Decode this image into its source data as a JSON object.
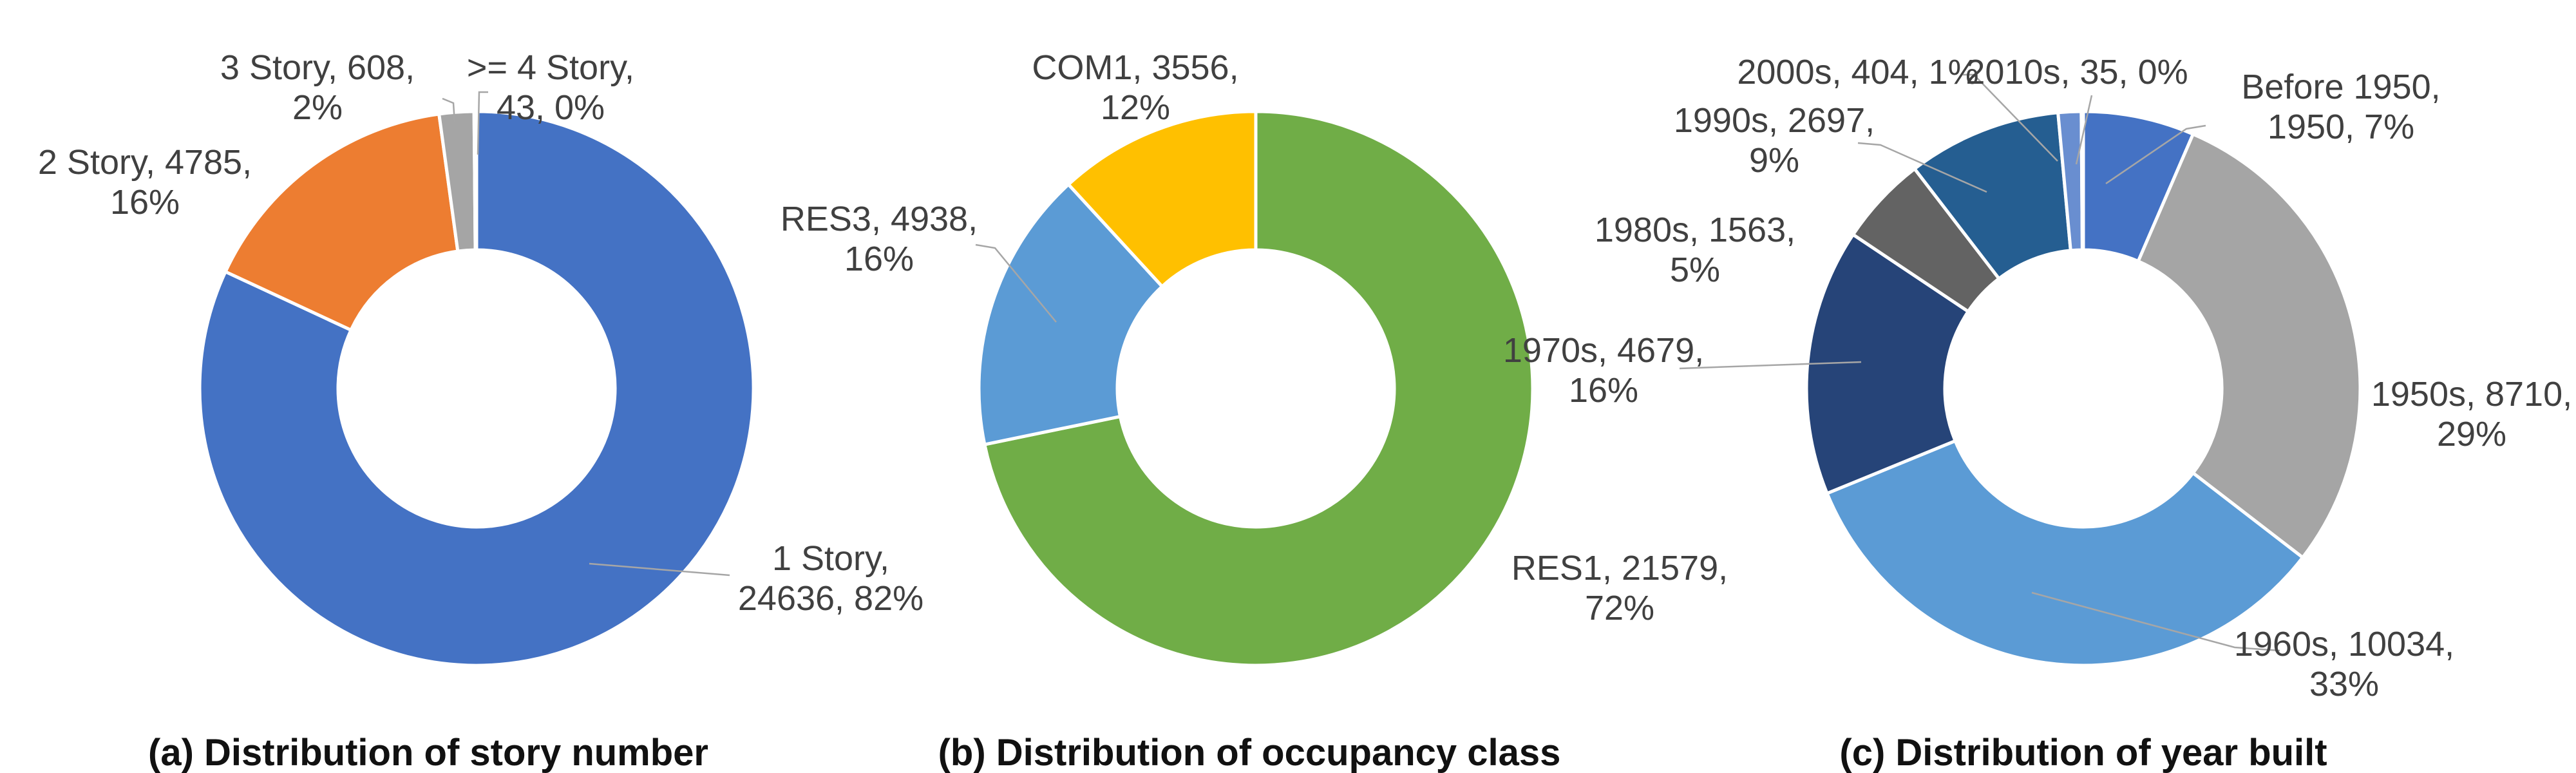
{
  "chart_data": [
    {
      "type": "pie",
      "donut": true,
      "title": "(a) Distribution of story number",
      "slices": [
        {
          "label": "1 Story, 24636, 82%",
          "name": "1 Story",
          "value": 24636,
          "percent": 82,
          "color": "#4472C4"
        },
        {
          "label": "2 Story, 4785, 16%",
          "name": "2 Story",
          "value": 4785,
          "percent": 16,
          "color": "#ED7D31"
        },
        {
          "label": "3 Story, 608, 2%",
          "name": "3 Story",
          "value": 608,
          "percent": 2,
          "color": "#A5A5A5"
        },
        {
          "label": ">= 4 Story, 43, 0%",
          "name": ">= 4 Story",
          "value": 43,
          "percent": 0,
          "color": "#5B9BD5"
        }
      ]
    },
    {
      "type": "pie",
      "donut": true,
      "title": "(b) Distribution of occupancy class",
      "slices": [
        {
          "label": "RES1, 21579, 72%",
          "name": "RES1",
          "value": 21579,
          "percent": 72,
          "color": "#70AD47"
        },
        {
          "label": "RES3, 4938, 16%",
          "name": "RES3",
          "value": 4938,
          "percent": 16,
          "color": "#5B9BD5"
        },
        {
          "label": "COM1, 3556, 12%",
          "name": "COM1",
          "value": 3556,
          "percent": 12,
          "color": "#FFC000"
        }
      ]
    },
    {
      "type": "pie",
      "donut": true,
      "title": "(c) Distribution of year built",
      "slices": [
        {
          "label": "Before 1950, 1950, 7%",
          "name": "Before 1950",
          "value": 1950,
          "percent": 7,
          "color": "#4472C4"
        },
        {
          "label": "1950s, 8710, 29%",
          "name": "1950s",
          "value": 8710,
          "percent": 29,
          "color": "#A5A5A5"
        },
        {
          "label": "1960s, 10034, 33%",
          "name": "1960s",
          "value": 10034,
          "percent": 33,
          "color": "#5B9BD5"
        },
        {
          "label": "1970s, 4679, 16%",
          "name": "1970s",
          "value": 4679,
          "percent": 16,
          "color": "#264478"
        },
        {
          "label": "1980s, 1563, 5%",
          "name": "1980s",
          "value": 1563,
          "percent": 5,
          "color": "#636363"
        },
        {
          "label": "1990s, 2697, 9%",
          "name": "1990s",
          "value": 2697,
          "percent": 9,
          "color": "#255E91"
        },
        {
          "label": "2000s, 404, 1%",
          "name": "2000s",
          "value": 404,
          "percent": 1,
          "color": "#698ED0"
        },
        {
          "label": "2010s, 35, 0%",
          "name": "2010s",
          "value": 35,
          "percent": 0,
          "color": "#F1975A"
        }
      ]
    }
  ]
}
